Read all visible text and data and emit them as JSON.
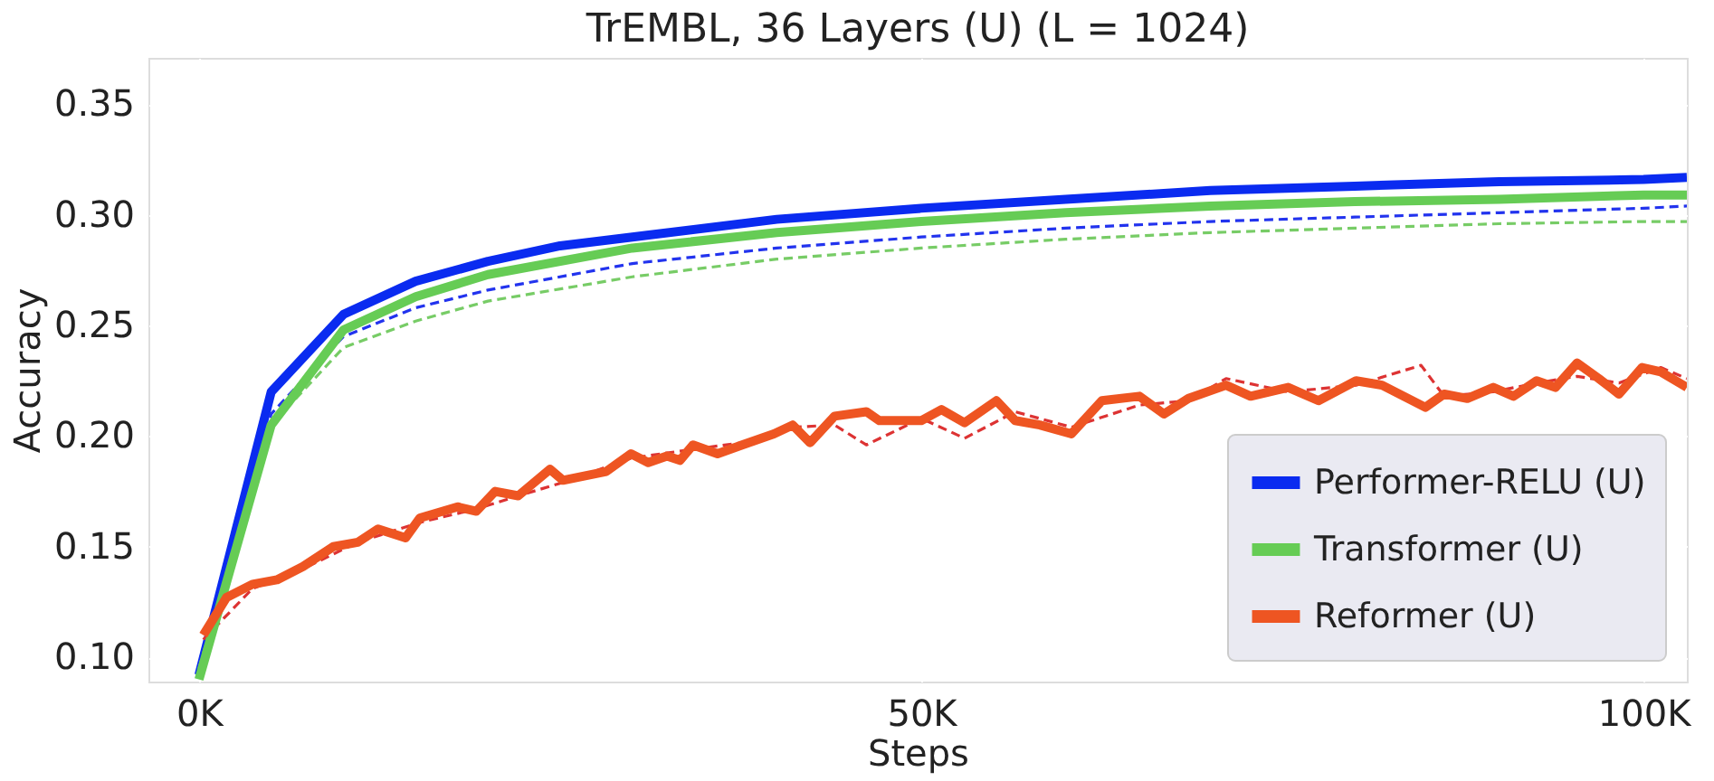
{
  "chart_data": {
    "type": "line",
    "title": "TrEMBL, 36 Layers (U) (L = 1024)",
    "xlabel": "Steps",
    "ylabel": "Accuracy",
    "xlim": [
      -3500,
      103000
    ],
    "ylim": [
      0.089,
      0.371
    ],
    "xticks": [
      {
        "value": 0,
        "label": "0K"
      },
      {
        "value": 50000,
        "label": "50K"
      },
      {
        "value": 100000,
        "label": "100K"
      }
    ],
    "yticks": [
      {
        "value": 0.1,
        "label": "0.10"
      },
      0.15,
      {
        "value": 0.2,
        "label": "0.20"
      },
      0.25,
      {
        "value": 0.3,
        "label": "0.30"
      },
      0.35
    ],
    "grid": true,
    "legend": "bottom right",
    "marker": "none",
    "series": [
      {
        "name": "Performer-RELU (U)",
        "color": "#0a2bf0",
        "line_style": "solid",
        "x": [
          0,
          5000,
          10000,
          15000,
          20000,
          25000,
          30000,
          40000,
          50000,
          60000,
          70000,
          80000,
          90000,
          100000,
          103000
        ],
        "values": [
          0.092,
          0.22,
          0.255,
          0.27,
          0.279,
          0.286,
          0.29,
          0.298,
          0.303,
          0.307,
          0.311,
          0.313,
          0.315,
          0.316,
          0.317
        ]
      },
      {
        "name": "Transformer (U)",
        "color": "#66cc55",
        "line_style": "solid",
        "x": [
          0,
          5000,
          10000,
          15000,
          20000,
          30000,
          40000,
          50000,
          60000,
          70000,
          80000,
          90000,
          100000,
          103000
        ],
        "values": [
          0.09,
          0.205,
          0.248,
          0.263,
          0.273,
          0.285,
          0.292,
          0.297,
          0.301,
          0.304,
          0.306,
          0.307,
          0.309,
          0.309
        ]
      },
      {
        "name": "Reformer (U)",
        "color": "#ee5522",
        "line_style": "solid",
        "x": [
          300,
          1900,
          3700,
          5400,
          7200,
          9300,
          11000,
          12400,
          14300,
          15300,
          17900,
          19200,
          20500,
          22100,
          24300,
          25200,
          28200,
          29900,
          31100,
          32400,
          33300,
          34200,
          35900,
          37600,
          39800,
          41100,
          42300,
          44000,
          46200,
          47100,
          50000,
          51400,
          53000,
          55200,
          56500,
          58200,
          60400,
          62500,
          65100,
          66800,
          68500,
          71100,
          72800,
          75400,
          77500,
          80100,
          81900,
          84900,
          86200,
          87800,
          89600,
          91000,
          92600,
          93900,
          95400,
          96900,
          98300,
          99900,
          101200,
          103000
        ],
        "values": [
          0.11,
          0.127,
          0.133,
          0.135,
          0.141,
          0.15,
          0.152,
          0.158,
          0.154,
          0.163,
          0.168,
          0.166,
          0.175,
          0.173,
          0.185,
          0.18,
          0.184,
          0.192,
          0.188,
          0.191,
          0.189,
          0.196,
          0.192,
          0.196,
          0.201,
          0.205,
          0.197,
          0.209,
          0.211,
          0.207,
          0.207,
          0.212,
          0.206,
          0.216,
          0.207,
          0.205,
          0.201,
          0.216,
          0.218,
          0.21,
          0.217,
          0.223,
          0.218,
          0.222,
          0.216,
          0.225,
          0.223,
          0.213,
          0.219,
          0.217,
          0.222,
          0.218,
          0.225,
          0.222,
          0.233,
          0.226,
          0.219,
          0.231,
          0.229,
          0.222
        ]
      },
      {
        "color": "#2233ee",
        "line_style": "dashed",
        "x": [
          0,
          5000,
          10000,
          15000,
          20000,
          30000,
          40000,
          50000,
          60000,
          70000,
          80000,
          90000,
          100000,
          103000
        ],
        "values": [
          0.095,
          0.21,
          0.245,
          0.258,
          0.266,
          0.278,
          0.285,
          0.29,
          0.294,
          0.297,
          0.299,
          0.301,
          0.303,
          0.304
        ]
      },
      {
        "color": "#77cc66",
        "line_style": "dashed",
        "x": [
          0,
          5000,
          10000,
          15000,
          20000,
          30000,
          40000,
          50000,
          60000,
          70000,
          80000,
          90000,
          100000,
          103000
        ],
        "values": [
          0.095,
          0.205,
          0.24,
          0.252,
          0.261,
          0.272,
          0.28,
          0.285,
          0.289,
          0.292,
          0.294,
          0.296,
          0.297,
          0.297
        ]
      },
      {
        "color": "#dd3333",
        "line_style": "dashed",
        "x": [
          300,
          3700,
          7200,
          11000,
          15300,
          19200,
          22100,
          25200,
          29900,
          34200,
          37600,
          41100,
          44000,
          46200,
          50000,
          53000,
          56500,
          60400,
          65100,
          68500,
          71100,
          75400,
          80100,
          84600,
          86200,
          89600,
          92600,
          95400,
          98300,
          101200,
          103000
        ],
        "values": [
          0.108,
          0.131,
          0.14,
          0.152,
          0.161,
          0.167,
          0.173,
          0.179,
          0.19,
          0.194,
          0.197,
          0.204,
          0.205,
          0.196,
          0.208,
          0.199,
          0.211,
          0.204,
          0.214,
          0.216,
          0.226,
          0.22,
          0.223,
          0.232,
          0.218,
          0.22,
          0.224,
          0.227,
          0.224,
          0.231,
          0.226
        ]
      }
    ]
  }
}
